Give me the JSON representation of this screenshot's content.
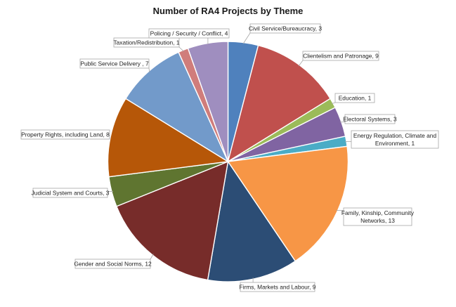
{
  "chart_data": {
    "type": "pie",
    "title": "Number of RA4 Projects by Theme",
    "categories": [
      "Civil Service/Bureaucracy",
      "Clientelism and Patronage",
      "Education",
      "Electoral Systems",
      "Energy Regulation, Climate and Environment",
      "Family, Kinship, Community Networks",
      "Firms, Markets and Labour",
      "Gender and Social Norms",
      "Judicial System and Courts",
      "Property Rights, including Land",
      "Public Service Delivery",
      "Taxation/Redistribution",
      "Policing / Security / Conflict"
    ],
    "values": [
      3,
      9,
      1,
      3,
      1,
      13,
      9,
      12,
      3,
      8,
      7,
      1,
      4
    ],
    "colors": [
      "#4f81bd",
      "#c0504d",
      "#9bbb59",
      "#8064a2",
      "#4bacc6",
      "#f79646",
      "#2c4d75",
      "#772c2a",
      "#5f7530",
      "#b65708",
      "#729aca",
      "#d07d7b",
      "#9f8ebf"
    ],
    "data_labels": [
      [
        "Civil Service/Bureaucracy, 3"
      ],
      [
        "Clientelism and Patronage, 9"
      ],
      [
        "Education, 1"
      ],
      [
        "Electoral Systems, 3"
      ],
      [
        "Energy Regulation, Climate and",
        "Environment, 1"
      ],
      [
        "Family, Kinship, Community",
        "Networks, 13"
      ],
      [
        "Firms, Markets and Labour, 9"
      ],
      [
        "Gender and Social Norms, 12"
      ],
      [
        "Judicial System and Courts, 3"
      ],
      [
        "Property Rights, including Land, 8"
      ],
      [
        "Public Service Delivery , 7"
      ],
      [
        "Taxation/Redistribution, 1"
      ],
      [
        "Policing / Security / Conflict, 4"
      ]
    ],
    "start_angle_deg": 0,
    "direction": "clockwise",
    "legend": "none"
  }
}
